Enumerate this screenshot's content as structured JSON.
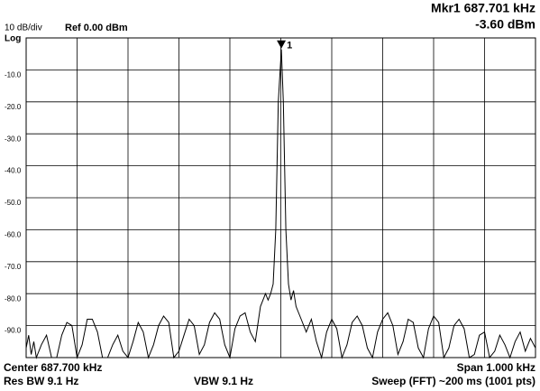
{
  "chart_data": {
    "type": "line",
    "scale_label": "10 dB/div",
    "ref_label": "Ref 0.00 dBm",
    "scale_type": "Log",
    "marker_readout": [
      "Mkr1 687.701 kHz",
      "-3.60 dBm"
    ],
    "marker": {
      "label": "1",
      "x": 687.701,
      "y": -3.6
    },
    "footer": {
      "center": "Center 687.700 kHz",
      "span": "Span 1.000 kHz",
      "rbw": "Res BW 9.1 Hz",
      "vbw": "VBW 9.1 Hz",
      "sweep": "Sweep (FFT)  ~200 ms (1001 pts)"
    },
    "color": "#000000",
    "grid": true,
    "xlim": [
      687.2,
      688.2
    ],
    "ylim": [
      -100,
      0
    ],
    "yticks": [
      {
        "value": -10,
        "label": "-10.0"
      },
      {
        "value": -20,
        "label": "-20.0"
      },
      {
        "value": -30,
        "label": "-30.0"
      },
      {
        "value": -40,
        "label": "-40.0"
      },
      {
        "value": -50,
        "label": "-50.0"
      },
      {
        "value": -60,
        "label": "-60.0"
      },
      {
        "value": -70,
        "label": "-70.0"
      },
      {
        "value": -80,
        "label": "-80.0"
      },
      {
        "value": -90,
        "label": "-90.0"
      }
    ],
    "x": [
      687.2,
      687.205,
      687.21,
      687.215,
      687.22,
      687.23,
      687.24,
      687.25,
      687.26,
      687.27,
      687.28,
      687.29,
      687.3,
      687.31,
      687.32,
      687.33,
      687.34,
      687.35,
      687.36,
      687.37,
      687.38,
      687.39,
      687.4,
      687.41,
      687.42,
      687.43,
      687.44,
      687.45,
      687.46,
      687.47,
      687.48,
      687.49,
      687.5,
      687.51,
      687.52,
      687.53,
      687.54,
      687.55,
      687.56,
      687.57,
      687.58,
      687.59,
      687.6,
      687.61,
      687.62,
      687.63,
      687.64,
      687.65,
      687.66,
      687.67,
      687.675,
      687.68,
      687.685,
      687.69,
      687.695,
      687.701,
      687.705,
      687.71,
      687.715,
      687.72,
      687.725,
      687.73,
      687.74,
      687.75,
      687.76,
      687.77,
      687.78,
      687.79,
      687.8,
      687.81,
      687.82,
      687.83,
      687.84,
      687.85,
      687.86,
      687.87,
      687.88,
      687.89,
      687.9,
      687.91,
      687.92,
      687.93,
      687.94,
      687.95,
      687.96,
      687.97,
      687.98,
      687.99,
      688.0,
      688.01,
      688.02,
      688.03,
      688.04,
      688.05,
      688.06,
      688.07,
      688.08,
      688.09,
      688.1,
      688.11,
      688.12,
      688.13,
      688.14,
      688.15,
      688.16,
      688.17,
      688.18,
      688.19,
      688.2
    ],
    "values": [
      -97,
      -93,
      -99,
      -95,
      -100,
      -96,
      -93,
      -100,
      -100,
      -93,
      -89,
      -90,
      -100,
      -96,
      -88,
      -88,
      -92,
      -100,
      -100,
      -96,
      -93,
      -98,
      -100,
      -95,
      -89,
      -92,
      -100,
      -96,
      -90,
      -87,
      -89,
      -100,
      -98,
      -93,
      -88,
      -90,
      -99,
      -96,
      -89,
      -86,
      -88,
      -96,
      -100,
      -91,
      -87,
      -86,
      -92,
      -95,
      -84,
      -80,
      -82,
      -80,
      -77,
      -60,
      -20,
      -3.6,
      -20,
      -60,
      -77,
      -82,
      -79,
      -84,
      -88,
      -92,
      -88,
      -95,
      -100,
      -92,
      -88,
      -91,
      -100,
      -96,
      -89,
      -87,
      -90,
      -97,
      -100,
      -92,
      -88,
      -86,
      -90,
      -99,
      -95,
      -88,
      -89,
      -97,
      -100,
      -91,
      -87,
      -89,
      -100,
      -97,
      -90,
      -88,
      -91,
      -100,
      -99,
      -93,
      -92,
      -100,
      -98,
      -93,
      -96,
      -100,
      -95,
      -92,
      -98,
      -94,
      -97
    ]
  }
}
